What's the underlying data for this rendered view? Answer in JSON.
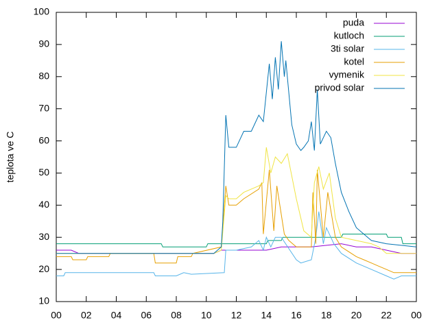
{
  "chart_data": {
    "type": "line",
    "ylabel": "teplota ve C",
    "xlim": [
      0,
      24
    ],
    "xticks": [
      {
        "value": 0,
        "label": "00"
      },
      {
        "value": 2,
        "label": "02"
      },
      {
        "value": 4,
        "label": "04"
      },
      {
        "value": 6,
        "label": "06"
      },
      {
        "value": 8,
        "label": "08"
      },
      {
        "value": 10,
        "label": "10"
      },
      12,
      14,
      16,
      18,
      20,
      22,
      {
        "value": 24,
        "label": "00"
      }
    ],
    "ylim": [
      10,
      100
    ],
    "yticks": [
      10,
      20,
      30,
      40,
      50,
      60,
      70,
      80,
      90,
      100
    ],
    "legend": "top-right",
    "series": [
      {
        "name": "puda",
        "color": "#9400d3",
        "x": [
          0,
          1,
          1.5,
          4,
          10.5,
          11,
          14,
          15,
          17,
          19,
          20,
          21,
          22,
          23,
          24
        ],
        "values": [
          26,
          26,
          25,
          25,
          25,
          26,
          26,
          27,
          27,
          28,
          27,
          27,
          26,
          25,
          25
        ]
      },
      {
        "name": "kutloch",
        "color": "#009e73",
        "x": [
          0,
          7,
          7.1,
          10,
          10.1,
          14,
          14.1,
          15,
          15.1,
          19,
          19.1,
          22,
          22.1,
          23,
          23.1,
          24
        ],
        "values": [
          28,
          28,
          27,
          27,
          28,
          28,
          29,
          29,
          30,
          30,
          31,
          31,
          30,
          30,
          28,
          28
        ]
      },
      {
        "name": "3ti solar",
        "color": "#56b4e9",
        "x": [
          0,
          0.5,
          0.6,
          6.5,
          6.6,
          8,
          8.5,
          9,
          11.2,
          11.3,
          12,
          13,
          13.5,
          13.8,
          14,
          14.3,
          14.6,
          15,
          16,
          16.3,
          17,
          17.3,
          17.5,
          17.8,
          18,
          18.5,
          19,
          20,
          21,
          22,
          22.5,
          23,
          24
        ],
        "values": [
          18,
          18,
          19,
          19,
          18,
          18,
          19,
          18.5,
          19,
          26,
          26,
          27,
          29,
          26,
          30,
          27,
          30,
          30,
          23,
          22,
          23,
          30,
          38,
          28,
          33,
          28,
          25,
          22,
          20,
          18,
          17,
          18,
          18
        ]
      },
      {
        "name": "kotel",
        "color": "#e69f00",
        "x": [
          0,
          1,
          1.1,
          2,
          2.1,
          3.5,
          3.6,
          6.5,
          6.6,
          8,
          8.1,
          9,
          9.1,
          11,
          11.3,
          11.5,
          12,
          12.5,
          13.5,
          13.7,
          13.8,
          14.2,
          14.5,
          14.7,
          15.2,
          15.5,
          16,
          17,
          17.1,
          17.3,
          17.4,
          17.8,
          18.1,
          18.6,
          19,
          20,
          20.5,
          21,
          21.5,
          22,
          22.5,
          24
        ],
        "values": [
          24,
          24,
          23,
          23,
          24,
          24,
          25,
          25,
          22,
          22,
          24,
          24,
          25,
          27,
          46,
          40,
          40,
          42,
          45,
          47,
          31,
          51,
          32,
          46,
          31,
          29,
          27,
          27,
          44,
          28,
          51,
          30,
          44,
          30,
          27,
          24,
          23,
          22,
          21,
          20,
          19,
          19
        ]
      },
      {
        "name": "vymenik",
        "color": "#f0e442",
        "x": [
          0,
          10.5,
          11,
          11.3,
          11.5,
          12,
          12.5,
          13.5,
          13.8,
          14,
          14.3,
          14.6,
          15,
          15.4,
          16,
          16.5,
          17,
          17.2,
          17.5,
          17.8,
          18.2,
          18.6,
          19,
          20,
          21,
          21.5,
          22,
          24
        ],
        "values": [
          25,
          25,
          26,
          43,
          42,
          42,
          44,
          46,
          47,
          58,
          50,
          55,
          53,
          56,
          42,
          32,
          30,
          47,
          52,
          45,
          50,
          36,
          30,
          29,
          28,
          27,
          25,
          25
        ]
      },
      {
        "name": "privod solar",
        "color": "#0072b2",
        "x": [
          0,
          10.5,
          11,
          11.1,
          11.3,
          11.5,
          12,
          12.5,
          13,
          13.5,
          13.8,
          14.2,
          14.4,
          14.6,
          14.8,
          15,
          15.2,
          15.3,
          15.7,
          16,
          16.3,
          16.5,
          16.8,
          17,
          17.2,
          17.4,
          17.6,
          18,
          18.3,
          18.6,
          19,
          19.5,
          20,
          20.5,
          21,
          22,
          24
        ],
        "values": [
          25,
          25,
          27,
          35,
          68,
          58,
          58,
          63,
          63,
          68,
          66,
          84,
          73,
          86,
          76,
          91,
          80,
          85,
          65,
          59,
          57,
          58,
          60,
          66,
          57,
          76,
          59,
          63,
          61,
          53,
          44,
          38,
          33,
          31,
          29,
          28,
          27
        ]
      }
    ]
  }
}
